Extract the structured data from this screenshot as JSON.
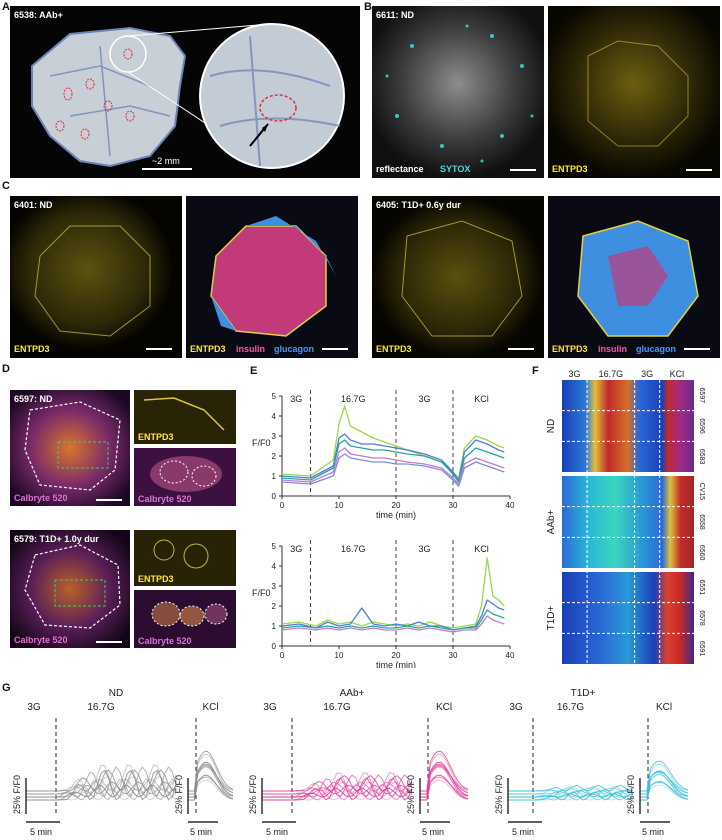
{
  "panels": {
    "A": {
      "letter": "A",
      "title": "6538: AAb+",
      "scale_text": "~2 mm"
    },
    "B": {
      "letter": "B",
      "title": "6611: ND",
      "left_label_1": "reflectance",
      "left_label_2": "SYTOX",
      "right_label": "ENTPD3"
    },
    "C": {
      "letter": "C",
      "title_left": "6401: ND",
      "title_right": "6405: T1D+ 0.6y dur",
      "img1_label": "ENTPD3",
      "img2_l1": "ENTPD3",
      "img2_l2": "insulin",
      "img2_l3": "glucagon",
      "img3_label": "ENTPD3",
      "img4_l1": "ENTPD3",
      "img4_l2": "insulin",
      "img4_l3": "glucagon"
    },
    "D": {
      "letter": "D",
      "top_title": "6597: ND",
      "bottom_title": "6579: T1D+ 1.0y dur",
      "calbryte": "Calbryte 520",
      "entpd3": "ENTPD3"
    },
    "E": {
      "letter": "E"
    },
    "F": {
      "letter": "F"
    },
    "G": {
      "letter": "G"
    }
  },
  "chart_data": [
    {
      "type": "line",
      "panel": "E-top",
      "ylabel": "F/F0",
      "xlabel": "time (min)",
      "xlim": [
        0,
        40
      ],
      "ylim": [
        0,
        5
      ],
      "xticks": [
        0,
        10,
        20,
        30,
        40
      ],
      "yticks": [
        0,
        1,
        2,
        3,
        4,
        5
      ],
      "phases": [
        "3G",
        "16.7G",
        "3G",
        "KCl"
      ],
      "phase_boundaries": [
        5,
        20,
        30
      ],
      "series": [
        {
          "color": "#9fd64a",
          "x": [
            0,
            5,
            9,
            10,
            11,
            12,
            14,
            16,
            18,
            20,
            22,
            25,
            28,
            30,
            31,
            32,
            34,
            36,
            38,
            39
          ],
          "y": [
            1.1,
            1.0,
            1.8,
            3.6,
            4.5,
            3.5,
            3.2,
            2.9,
            2.7,
            2.5,
            2.3,
            2.0,
            1.7,
            1.2,
            0.9,
            2.4,
            3.0,
            2.8,
            2.5,
            2.4
          ]
        },
        {
          "color": "#4a7ed6",
          "x": [
            0,
            5,
            9,
            10,
            11,
            12,
            14,
            16,
            18,
            20,
            22,
            25,
            28,
            30,
            31,
            32,
            34,
            36,
            38,
            39
          ],
          "y": [
            1.0,
            0.9,
            1.5,
            2.9,
            3.1,
            2.8,
            2.6,
            2.6,
            2.5,
            2.4,
            2.3,
            2.1,
            1.8,
            1.2,
            0.8,
            2.2,
            2.8,
            2.6,
            2.3,
            2.2
          ]
        },
        {
          "color": "#27a59a",
          "x": [
            0,
            5,
            9,
            10,
            11,
            12,
            14,
            16,
            18,
            20,
            22,
            25,
            28,
            30,
            31,
            32,
            34,
            36,
            38,
            39
          ],
          "y": [
            0.9,
            0.8,
            1.4,
            2.6,
            2.8,
            2.5,
            2.4,
            2.3,
            2.3,
            2.2,
            2.1,
            2.0,
            1.7,
            1.1,
            0.7,
            1.9,
            2.4,
            2.2,
            2.0,
            1.9
          ]
        },
        {
          "color": "#c27ad6",
          "x": [
            0,
            5,
            9,
            10,
            11,
            12,
            14,
            16,
            18,
            20,
            22,
            25,
            28,
            30,
            31,
            32,
            34,
            36,
            38,
            39
          ],
          "y": [
            0.8,
            0.7,
            1.2,
            2.2,
            2.4,
            2.1,
            2.0,
            1.9,
            1.9,
            1.8,
            1.7,
            1.6,
            1.4,
            0.9,
            0.6,
            1.6,
            1.9,
            1.7,
            1.5,
            1.4
          ]
        },
        {
          "color": "#7b8ce0",
          "x": [
            0,
            5,
            9,
            10,
            11,
            12,
            14,
            16,
            18,
            20,
            22,
            25,
            28,
            30,
            31,
            32,
            34,
            36,
            38,
            39
          ],
          "y": [
            0.7,
            0.6,
            1.0,
            1.9,
            2.1,
            1.9,
            1.8,
            1.7,
            1.7,
            1.6,
            1.6,
            1.5,
            1.3,
            0.8,
            0.5,
            1.4,
            1.7,
            1.5,
            1.3,
            1.2
          ]
        }
      ]
    },
    {
      "type": "line",
      "panel": "E-bottom",
      "ylabel": "F/F0",
      "xlabel": "time (min)",
      "xlim": [
        0,
        40
      ],
      "ylim": [
        0,
        5
      ],
      "xticks": [
        0,
        10,
        20,
        30,
        40
      ],
      "yticks": [
        0,
        1,
        2,
        3,
        4,
        5
      ],
      "phases": [
        "3G",
        "16.7G",
        "3G",
        "KCl"
      ],
      "phase_boundaries": [
        5,
        20,
        30
      ],
      "series": [
        {
          "color": "#9fd64a",
          "x": [
            0,
            3,
            6,
            8,
            10,
            12,
            14,
            16,
            18,
            20,
            22,
            24,
            26,
            28,
            30,
            32,
            34,
            35,
            36,
            37,
            38,
            39
          ],
          "y": [
            1.1,
            1.2,
            1.0,
            1.3,
            1.1,
            1.2,
            1.0,
            1.2,
            1.1,
            1.0,
            1.1,
            1.0,
            1.2,
            1.0,
            0.9,
            1.0,
            1.1,
            2.0,
            4.4,
            2.5,
            2.3,
            2.0
          ]
        },
        {
          "color": "#4a7ed6",
          "x": [
            0,
            3,
            6,
            8,
            10,
            12,
            14,
            16,
            18,
            20,
            22,
            24,
            26,
            28,
            30,
            32,
            34,
            35,
            36,
            37,
            38,
            39
          ],
          "y": [
            1.0,
            1.1,
            0.9,
            1.2,
            1.0,
            1.1,
            1.9,
            1.1,
            1.0,
            1.1,
            1.0,
            1.2,
            1.0,
            1.0,
            0.8,
            0.9,
            1.0,
            1.5,
            2.3,
            2.1,
            1.9,
            1.8
          ]
        },
        {
          "color": "#27a59a",
          "x": [
            0,
            3,
            6,
            8,
            10,
            12,
            14,
            16,
            18,
            20,
            22,
            24,
            26,
            28,
            30,
            32,
            34,
            35,
            36,
            37,
            38,
            39
          ],
          "y": [
            0.9,
            1.0,
            0.9,
            1.0,
            0.9,
            1.0,
            0.9,
            1.0,
            0.9,
            0.9,
            1.0,
            0.9,
            1.0,
            0.9,
            0.8,
            0.9,
            0.9,
            1.3,
            1.8,
            1.6,
            1.5,
            1.4
          ]
        },
        {
          "color": "#c27ad6",
          "x": [
            0,
            3,
            6,
            8,
            10,
            12,
            14,
            16,
            18,
            20,
            22,
            24,
            26,
            28,
            30,
            32,
            34,
            35,
            36,
            37,
            38,
            39
          ],
          "y": [
            0.8,
            0.9,
            0.8,
            0.9,
            0.8,
            0.9,
            0.8,
            0.9,
            0.8,
            0.8,
            0.9,
            0.8,
            0.9,
            0.8,
            0.7,
            0.8,
            0.8,
            1.1,
            1.5,
            1.3,
            1.2,
            1.1
          ]
        }
      ]
    },
    {
      "type": "heatmap",
      "panel": "F",
      "phases": [
        "3G",
        "16.7G",
        "3G",
        "KCl"
      ],
      "groups": [
        {
          "name": "ND",
          "donors": [
            "6597",
            "6596",
            "6583"
          ]
        },
        {
          "name": "AAb+",
          "donors": [
            "CV15",
            "6558",
            "6560"
          ]
        },
        {
          "name": "T1D+",
          "donors": [
            "6551",
            "6578",
            "6591"
          ]
        }
      ]
    },
    {
      "type": "line",
      "panel": "G",
      "groups": [
        {
          "name": "ND",
          "glucose_labels": [
            "3G",
            "16.7G"
          ],
          "kcl": "KCl",
          "color": "#8a8a8a"
        },
        {
          "name": "AAb+",
          "glucose_labels": [
            "3G",
            "16.7G"
          ],
          "kcl": "KCl",
          "color": "#e0399a"
        },
        {
          "name": "T1D+",
          "glucose_labels": [
            "3G",
            "16.7G"
          ],
          "kcl": "KCl",
          "color": "#37bcd6"
        }
      ],
      "scale_y": "25% F/F0",
      "scale_x": "5 min"
    }
  ]
}
